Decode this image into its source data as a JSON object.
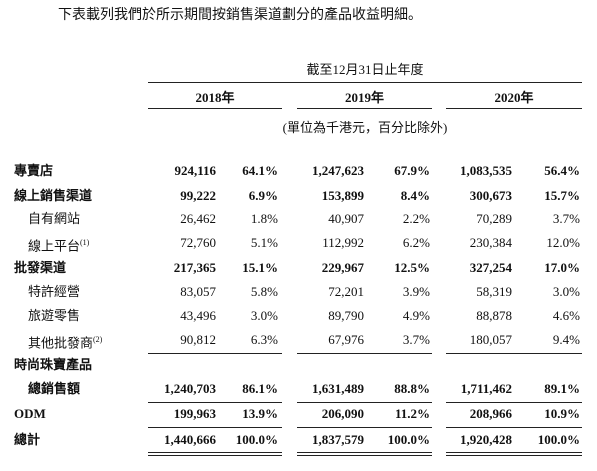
{
  "intro": "下表載列我們於所示期間按銷售渠道劃分的產品收益明細。",
  "table": {
    "period_header": "截至12月31日止年度",
    "years": [
      "2018年",
      "2019年",
      "2020年"
    ],
    "unit_note": "(單位為千港元，百分比除外)",
    "rows": [
      {
        "label": "專賣店",
        "cells": [
          "924,116",
          "64.1%",
          "1,247,623",
          "67.9%",
          "1,083,535",
          "56.4%"
        ]
      },
      {
        "label": "線上銷售渠道",
        "cells": [
          "99,222",
          "6.9%",
          "153,899",
          "8.4%",
          "300,673",
          "15.7%"
        ]
      },
      {
        "label": "自有網站",
        "cells": [
          "26,462",
          "1.8%",
          "40,907",
          "2.2%",
          "70,289",
          "3.7%"
        ]
      },
      {
        "label": "線上平台",
        "note": "(1)",
        "cells": [
          "72,760",
          "5.1%",
          "112,992",
          "6.2%",
          "230,384",
          "12.0%"
        ]
      },
      {
        "label": "批發渠道",
        "cells": [
          "217,365",
          "15.1%",
          "229,967",
          "12.5%",
          "327,254",
          "17.0%"
        ]
      },
      {
        "label": "特許經營",
        "cells": [
          "83,057",
          "5.8%",
          "72,201",
          "3.9%",
          "58,319",
          "3.0%"
        ]
      },
      {
        "label": "旅遊零售",
        "cells": [
          "43,496",
          "3.0%",
          "89,790",
          "4.9%",
          "88,878",
          "4.6%"
        ]
      },
      {
        "label": "其他批發商",
        "note": "(2)",
        "cells": [
          "90,812",
          "6.3%",
          "67,976",
          "3.7%",
          "180,057",
          "9.4%"
        ]
      },
      {
        "label": "時尚珠寶產品",
        "cells": []
      },
      {
        "label": "總銷售額",
        "cells": [
          "1,240,703",
          "86.1%",
          "1,631,489",
          "88.8%",
          "1,711,462",
          "89.1%"
        ]
      },
      {
        "label": "ODM",
        "cells": [
          "199,963",
          "13.9%",
          "206,090",
          "11.2%",
          "208,966",
          "10.9%"
        ]
      },
      {
        "label": "總計",
        "cells": [
          "1,440,666",
          "100.0%",
          "1,837,579",
          "100.0%",
          "1,920,428",
          "100.0%"
        ]
      }
    ]
  }
}
